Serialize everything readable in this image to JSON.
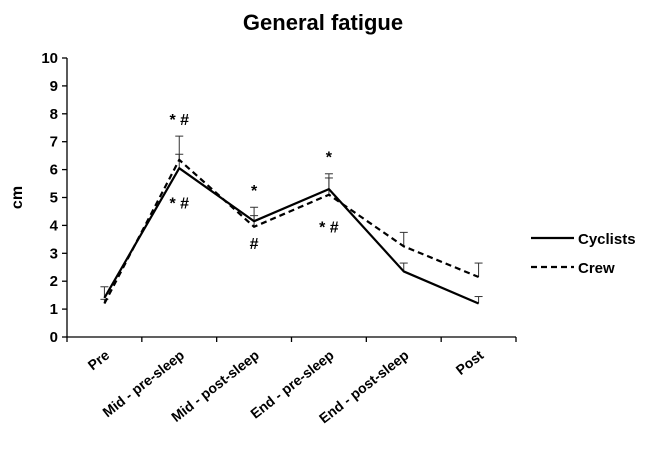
{
  "chart_data": {
    "type": "line",
    "title": "General fatigue",
    "xlabel": "",
    "ylabel": "cm",
    "ylim": [
      0,
      10
    ],
    "yticks": [
      "0",
      "1",
      "2",
      "3",
      "4",
      "5",
      "6",
      "7",
      "8",
      "9",
      "10"
    ],
    "categories": [
      "Pre",
      "Mid - pre-sleep",
      "Mid - post-sleep",
      "End - pre-sleep",
      "End - post-sleep",
      "Post"
    ],
    "grid": false,
    "legend_position": "right",
    "series": [
      {
        "name": "Cyclists",
        "style": "solid",
        "color": "#000000",
        "values": [
          1.4,
          6.05,
          4.15,
          5.3,
          2.35,
          1.2
        ],
        "error": [
          0.4,
          0.5,
          0.5,
          0.55,
          0.3,
          0.25
        ]
      },
      {
        "name": "Crew",
        "style": "dashed",
        "color": "#000000",
        "values": [
          1.2,
          6.35,
          3.95,
          5.1,
          3.25,
          2.15
        ],
        "error": [
          0.15,
          0.85,
          0.4,
          0.6,
          0.5,
          0.5
        ]
      }
    ],
    "annotations": [
      {
        "category": 1,
        "y": 7.6,
        "text": "* #"
      },
      {
        "category": 1,
        "y": 4.6,
        "text": "* #"
      },
      {
        "category": 2,
        "y": 5.05,
        "text": "*"
      },
      {
        "category": 2,
        "y": 3.15,
        "text": "#"
      },
      {
        "category": 3,
        "y": 6.25,
        "text": "*"
      },
      {
        "category": 3,
        "y": 3.75,
        "text": "* #"
      }
    ]
  }
}
